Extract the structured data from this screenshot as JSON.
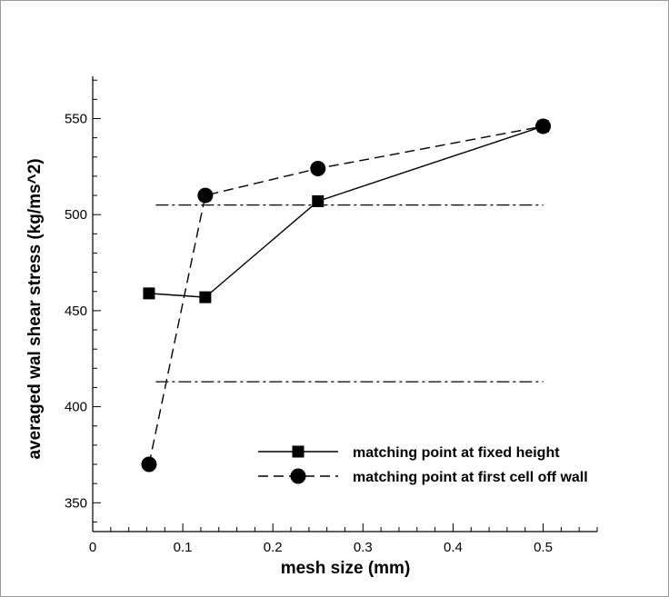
{
  "chart_data": {
    "type": "line",
    "xlabel": "mesh size (mm)",
    "ylabel": "averaged wal shear stress (kg/ms^2)",
    "xlim": [
      0,
      0.56
    ],
    "ylim": [
      335,
      572
    ],
    "x_ticks": [
      {
        "value": 0,
        "label": "0"
      },
      {
        "value": 0.1,
        "label": "0.1"
      },
      {
        "value": 0.2,
        "label": "0.2"
      },
      {
        "value": 0.3,
        "label": "0.3"
      },
      {
        "value": 0.4,
        "label": "0.4"
      },
      {
        "value": 0.5,
        "label": "0.5"
      }
    ],
    "y_ticks": [
      {
        "value": 350,
        "label": "350"
      },
      {
        "value": 400,
        "label": "400"
      },
      {
        "value": 450,
        "label": "450"
      },
      {
        "value": 500,
        "label": "500"
      },
      {
        "value": 550,
        "label": "550"
      }
    ],
    "series": [
      {
        "name": "matching point at fixed height",
        "marker": "square",
        "line_style": "solid",
        "color": "#000000",
        "x": [
          0.0625,
          0.125,
          0.25,
          0.5
        ],
        "y": [
          459,
          457,
          507,
          546
        ]
      },
      {
        "name": "matching point at first cell off wall",
        "marker": "circle",
        "line_style": "dashed",
        "color": "#000000",
        "x": [
          0.0625,
          0.125,
          0.25,
          0.5
        ],
        "y": [
          370,
          510,
          524,
          546
        ]
      }
    ],
    "reference_lines": [
      {
        "y": 505,
        "x_range": [
          0.07,
          0.5
        ],
        "line_style": "dash-dot"
      },
      {
        "y": 413,
        "x_range": [
          0.07,
          0.5
        ],
        "line_style": "dash-dot"
      }
    ],
    "grid": false,
    "legend_position": "bottom-right"
  }
}
